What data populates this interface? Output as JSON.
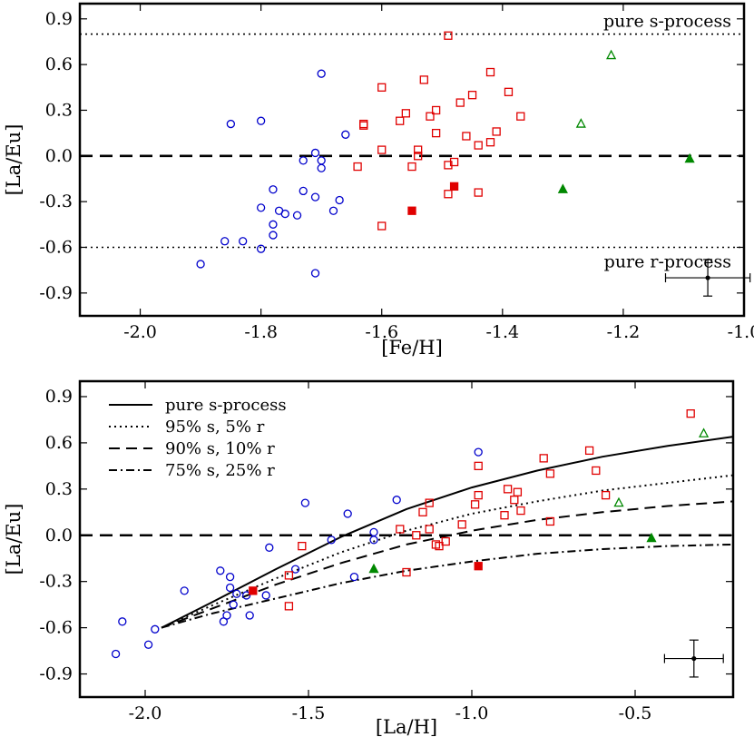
{
  "chart_data": [
    {
      "type": "scatter",
      "xlabel": "[Fe/H]",
      "ylabel": "[La/Eu]",
      "xlim": [
        -2.1,
        -1.0
      ],
      "ylim": [
        -1.05,
        1.0
      ],
      "xticks": [
        -2.0,
        -1.8,
        -1.6,
        -1.4,
        -1.2,
        -1.0
      ],
      "xtick_labels": [
        "-2.0",
        "-1.8",
        "-1.6",
        "-1.4",
        "-1.2",
        "-1.0"
      ],
      "yticks": [
        -0.9,
        -0.6,
        -0.3,
        0.0,
        0.3,
        0.6,
        0.9
      ],
      "ytick_labels": [
        "-0.9",
        "-0.6",
        "-0.3",
        "0.0",
        "0.3",
        "0.6",
        "0.9"
      ],
      "hlines": [
        {
          "y": 0.8,
          "style": "dotted"
        },
        {
          "y": 0.0,
          "style": "dashed"
        },
        {
          "y": -0.6,
          "style": "dotted"
        }
      ],
      "annotations": [
        "pure s-process",
        "pure r-process"
      ],
      "series": [
        {
          "name": "blue circles",
          "marker": "circle-open",
          "color": "#0000cc",
          "points": [
            [
              -1.9,
              -0.71
            ],
            [
              -1.86,
              -0.56
            ],
            [
              -1.85,
              0.21
            ],
            [
              -1.83,
              -0.56
            ],
            [
              -1.8,
              -0.61
            ],
            [
              -1.8,
              0.23
            ],
            [
              -1.8,
              -0.34
            ],
            [
              -1.78,
              -0.22
            ],
            [
              -1.78,
              -0.45
            ],
            [
              -1.78,
              -0.52
            ],
            [
              -1.77,
              -0.36
            ],
            [
              -1.76,
              -0.38
            ],
            [
              -1.74,
              -0.39
            ],
            [
              -1.73,
              -0.03
            ],
            [
              -1.73,
              -0.23
            ],
            [
              -1.71,
              0.02
            ],
            [
              -1.71,
              -0.27
            ],
            [
              -1.71,
              -0.77
            ],
            [
              -1.7,
              0.54
            ],
            [
              -1.7,
              -0.03
            ],
            [
              -1.7,
              -0.08
            ],
            [
              -1.68,
              -0.36
            ],
            [
              -1.67,
              -0.29
            ],
            [
              -1.66,
              0.14
            ]
          ]
        },
        {
          "name": "red squares",
          "marker": "square-open",
          "color": "#e00000",
          "points": [
            [
              -1.64,
              -0.07
            ],
            [
              -1.63,
              0.2
            ],
            [
              -1.63,
              0.21
            ],
            [
              -1.6,
              0.45
            ],
            [
              -1.6,
              0.04
            ],
            [
              -1.6,
              -0.46
            ],
            [
              -1.57,
              0.23
            ],
            [
              -1.56,
              0.28
            ],
            [
              -1.55,
              -0.07
            ],
            [
              -1.54,
              0.04
            ],
            [
              -1.54,
              0.0
            ],
            [
              -1.53,
              0.5
            ],
            [
              -1.52,
              0.26
            ],
            [
              -1.51,
              0.3
            ],
            [
              -1.51,
              0.15
            ],
            [
              -1.49,
              0.79
            ],
            [
              -1.49,
              -0.06
            ],
            [
              -1.49,
              -0.25
            ],
            [
              -1.48,
              -0.04
            ],
            [
              -1.47,
              0.35
            ],
            [
              -1.46,
              0.13
            ],
            [
              -1.45,
              0.4
            ],
            [
              -1.44,
              0.07
            ],
            [
              -1.44,
              -0.24
            ],
            [
              -1.42,
              0.55
            ],
            [
              -1.42,
              0.09
            ],
            [
              -1.41,
              0.16
            ],
            [
              -1.39,
              0.42
            ],
            [
              -1.37,
              0.26
            ]
          ]
        },
        {
          "name": "red filled squares",
          "marker": "square-filled",
          "color": "#e00000",
          "points": [
            [
              -1.55,
              -0.36
            ],
            [
              -1.48,
              -0.2
            ]
          ]
        },
        {
          "name": "green open triangles",
          "marker": "triangle-open",
          "color": "#008800",
          "points": [
            [
              -1.27,
              0.21
            ],
            [
              -1.22,
              0.66
            ]
          ]
        },
        {
          "name": "green filled triangles",
          "marker": "triangle-filled",
          "color": "#008800",
          "points": [
            [
              -1.3,
              -0.22
            ],
            [
              -1.09,
              -0.02
            ]
          ]
        }
      ],
      "error_bar": {
        "x": -1.06,
        "y": -0.8,
        "xerr": 0.07,
        "yerr": 0.12
      }
    },
    {
      "type": "scatter",
      "xlabel": "[La/H]",
      "ylabel": "[La/Eu]",
      "xlim": [
        -2.2,
        -0.2
      ],
      "ylim": [
        -1.05,
        1.0
      ],
      "xticks": [
        -2.0,
        -1.5,
        -1.0,
        -0.5
      ],
      "xtick_labels": [
        "-2.0",
        "-1.5",
        "-1.0",
        "-0.5"
      ],
      "yticks": [
        -0.9,
        -0.6,
        -0.3,
        0.0,
        0.3,
        0.6,
        0.9
      ],
      "ytick_labels": [
        "-0.9",
        "-0.6",
        "-0.3",
        "0.0",
        "0.3",
        "0.6",
        "0.9"
      ],
      "hlines": [
        {
          "y": 0.0,
          "style": "dashed"
        }
      ],
      "legend": [
        {
          "label": "pure s-process",
          "style": "solid"
        },
        {
          "label": "95% s, 5% r",
          "style": "dotted"
        },
        {
          "label": "90% s, 10% r",
          "style": "dashed"
        },
        {
          "label": "75% s, 25% r",
          "style": "dashdot"
        }
      ],
      "curves": [
        {
          "name": "pure s-process",
          "style": "solid",
          "points": [
            [
              -1.95,
              -0.6
            ],
            [
              -1.8,
              -0.44
            ],
            [
              -1.6,
              -0.22
            ],
            [
              -1.4,
              -0.01
            ],
            [
              -1.2,
              0.17
            ],
            [
              -1.0,
              0.31
            ],
            [
              -0.8,
              0.42
            ],
            [
              -0.6,
              0.51
            ],
            [
              -0.4,
              0.58
            ],
            [
              -0.2,
              0.64
            ]
          ]
        },
        {
          "name": "95% s, 5% r",
          "style": "dotted",
          "points": [
            [
              -1.95,
              -0.6
            ],
            [
              -1.8,
              -0.46
            ],
            [
              -1.6,
              -0.28
            ],
            [
              -1.4,
              -0.11
            ],
            [
              -1.2,
              0.03
            ],
            [
              -1.0,
              0.14
            ],
            [
              -0.8,
              0.22
            ],
            [
              -0.6,
              0.29
            ],
            [
              -0.4,
              0.34
            ],
            [
              -0.2,
              0.39
            ]
          ]
        },
        {
          "name": "90% s, 10% r",
          "style": "dashed",
          "points": [
            [
              -1.95,
              -0.6
            ],
            [
              -1.8,
              -0.48
            ],
            [
              -1.6,
              -0.32
            ],
            [
              -1.4,
              -0.18
            ],
            [
              -1.2,
              -0.06
            ],
            [
              -1.0,
              0.03
            ],
            [
              -0.8,
              0.1
            ],
            [
              -0.6,
              0.15
            ],
            [
              -0.4,
              0.19
            ],
            [
              -0.2,
              0.22
            ]
          ]
        },
        {
          "name": "75% s, 25% r",
          "style": "dashdot",
          "points": [
            [
              -1.95,
              -0.6
            ],
            [
              -1.8,
              -0.51
            ],
            [
              -1.6,
              -0.41
            ],
            [
              -1.4,
              -0.31
            ],
            [
              -1.2,
              -0.23
            ],
            [
              -1.0,
              -0.17
            ],
            [
              -0.8,
              -0.12
            ],
            [
              -0.6,
              -0.09
            ],
            [
              -0.4,
              -0.07
            ],
            [
              -0.2,
              -0.06
            ]
          ]
        }
      ],
      "series": [
        {
          "name": "blue circles",
          "marker": "circle-open",
          "color": "#0000cc",
          "points": [
            [
              -2.09,
              -0.77
            ],
            [
              -2.07,
              -0.56
            ],
            [
              -1.99,
              -0.71
            ],
            [
              -1.97,
              -0.61
            ],
            [
              -1.88,
              -0.36
            ],
            [
              -1.77,
              -0.23
            ],
            [
              -1.76,
              -0.56
            ],
            [
              -1.75,
              -0.52
            ],
            [
              -1.74,
              -0.34
            ],
            [
              -1.74,
              -0.27
            ],
            [
              -1.73,
              -0.45
            ],
            [
              -1.72,
              -0.38
            ],
            [
              -1.69,
              -0.39
            ],
            [
              -1.68,
              -0.52
            ],
            [
              -1.63,
              -0.39
            ],
            [
              -1.62,
              -0.08
            ],
            [
              -1.54,
              -0.22
            ],
            [
              -1.51,
              0.21
            ],
            [
              -1.43,
              -0.03
            ],
            [
              -1.38,
              0.14
            ],
            [
              -1.36,
              -0.27
            ],
            [
              -1.3,
              0.02
            ],
            [
              -1.3,
              -0.03
            ],
            [
              -1.23,
              0.23
            ],
            [
              -0.98,
              0.54
            ]
          ]
        },
        {
          "name": "red squares",
          "marker": "square-open",
          "color": "#e00000",
          "points": [
            [
              -1.56,
              -0.46
            ],
            [
              -1.56,
              -0.26
            ],
            [
              -1.52,
              -0.07
            ],
            [
              -1.22,
              0.04
            ],
            [
              -1.2,
              -0.24
            ],
            [
              -1.17,
              0.0
            ],
            [
              -1.15,
              0.15
            ],
            [
              -1.13,
              0.21
            ],
            [
              -1.13,
              0.04
            ],
            [
              -1.11,
              -0.06
            ],
            [
              -1.1,
              -0.07
            ],
            [
              -1.08,
              -0.04
            ],
            [
              -1.03,
              0.07
            ],
            [
              -0.99,
              0.2
            ],
            [
              -0.98,
              0.26
            ],
            [
              -0.98,
              0.45
            ],
            [
              -0.9,
              0.13
            ],
            [
              -0.89,
              0.3
            ],
            [
              -0.87,
              0.23
            ],
            [
              -0.86,
              0.28
            ],
            [
              -0.85,
              0.16
            ],
            [
              -0.78,
              0.5
            ],
            [
              -0.76,
              0.09
            ],
            [
              -0.76,
              0.4
            ],
            [
              -0.64,
              0.55
            ],
            [
              -0.62,
              0.42
            ],
            [
              -0.59,
              0.26
            ],
            [
              -0.33,
              0.79
            ]
          ]
        },
        {
          "name": "red filled squares",
          "marker": "square-filled",
          "color": "#e00000",
          "points": [
            [
              -1.67,
              -0.36
            ],
            [
              -0.98,
              -0.2
            ]
          ]
        },
        {
          "name": "green open triangles",
          "marker": "triangle-open",
          "color": "#008800",
          "points": [
            [
              -0.55,
              0.21
            ],
            [
              -0.29,
              0.66
            ]
          ]
        },
        {
          "name": "green filled triangles",
          "marker": "triangle-filled",
          "color": "#008800",
          "points": [
            [
              -1.3,
              -0.22
            ],
            [
              -0.45,
              -0.02
            ]
          ]
        }
      ],
      "error_bar": {
        "x": -0.32,
        "y": -0.8,
        "xerr": 0.09,
        "yerr": 0.12
      }
    }
  ]
}
